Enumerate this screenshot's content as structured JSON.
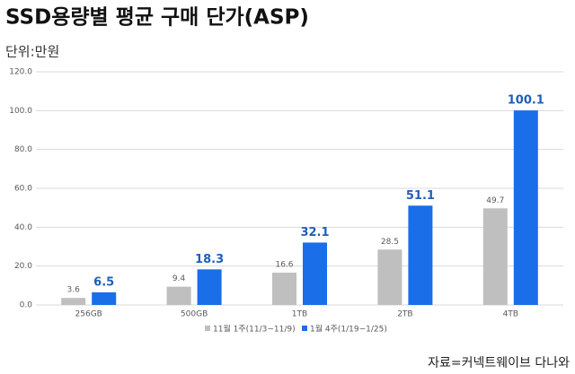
{
  "chart_data": {
    "type": "bar",
    "title": "SSD용량별 평균 구매 단가(ASP)",
    "unit_label": "단위:만원",
    "source": "자료=커넥트웨이브 다나와",
    "categories": [
      "256GB",
      "500GB",
      "1TB",
      "2TB",
      "4TB"
    ],
    "series": [
      {
        "name": "11월 1주(11/3~11/9)",
        "color": "#bfbfbf",
        "values": [
          3.6,
          9.4,
          16.6,
          28.5,
          49.7
        ]
      },
      {
        "name": "1월 4주(1/19~1/25)",
        "color": "#1a6ee8",
        "values": [
          6.5,
          18.3,
          32.1,
          51.1,
          100.1
        ]
      }
    ],
    "ylim": [
      0,
      120
    ],
    "yticks": [
      {
        "value": 0,
        "label": "0.0"
      },
      {
        "value": 20,
        "label": "20.0"
      },
      {
        "value": 40,
        "label": "40.0"
      },
      {
        "value": 60,
        "label": "60.0"
      },
      {
        "value": 80,
        "label": "80.0"
      },
      {
        "value": 100,
        "label": "100.0"
      },
      {
        "value": 120,
        "label": "120.0"
      }
    ],
    "grid": true
  }
}
